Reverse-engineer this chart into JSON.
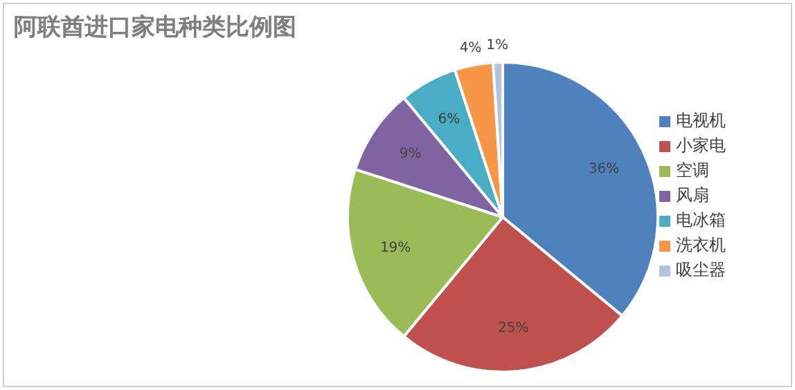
{
  "chart_data": {
    "type": "pie",
    "title": "阿联酋进口家电种类比例图",
    "categories": [
      "电视机",
      "小家电",
      "空调",
      "风扇",
      "电冰箱",
      "洗衣机",
      "吸尘器"
    ],
    "values": [
      36,
      25,
      19,
      9,
      6,
      4,
      1
    ],
    "colors": [
      "#4f81bd",
      "#c0504d",
      "#9bbb59",
      "#8064a2",
      "#4bacc6",
      "#f79646",
      "#b4c4e0"
    ],
    "value_labels": [
      "36%",
      "25%",
      "19%",
      "9%",
      "6%",
      "4%",
      "1%"
    ],
    "legend": "right"
  }
}
